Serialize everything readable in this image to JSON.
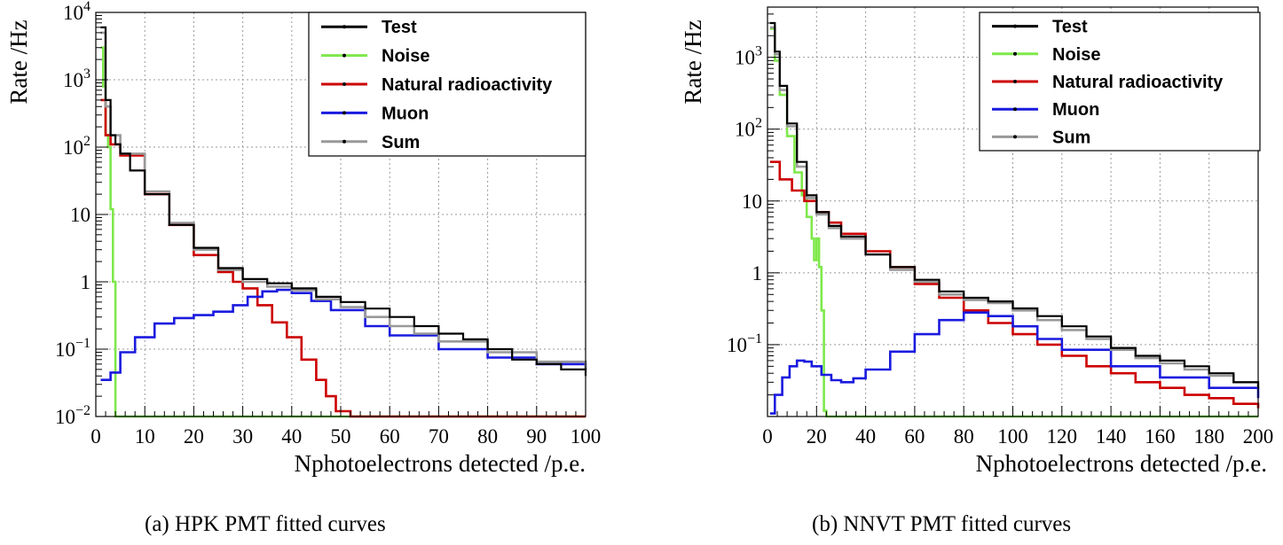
{
  "captions": {
    "a": "(a)  HPK PMT fitted curves",
    "b": "(b)  NNVT PMT fitted curves"
  },
  "colors": {
    "Test": "#000000",
    "Noise": "#7ee84a",
    "Natural radioactivity": "#cc0000",
    "Muon": "#1a1adf",
    "Sum": "#999999"
  },
  "chart_data": [
    {
      "type": "line",
      "title": "",
      "xlabel": "Nphotoelectrons detected /p.e.",
      "ylabel": "Rate /Hz",
      "xlim": [
        0,
        100
      ],
      "ylim": [
        0.01,
        10000
      ],
      "yscale": "log",
      "grid": true,
      "legend_position": "top-right",
      "x_ticks": [
        "0",
        "10",
        "20",
        "30",
        "40",
        "50",
        "60",
        "70",
        "80",
        "90",
        "100"
      ],
      "y_ticks": [
        {
          "value": 0.01,
          "base": "10",
          "exp": "−2"
        },
        {
          "value": 0.1,
          "base": "10",
          "exp": "−1"
        },
        {
          "value": 1,
          "label": "1"
        },
        {
          "value": 10,
          "label": "10"
        },
        {
          "value": 100,
          "base": "10",
          "exp": "2"
        },
        {
          "value": 1000,
          "base": "10",
          "exp": "3"
        },
        {
          "value": 10000,
          "base": "10",
          "exp": "4"
        }
      ],
      "series": [
        {
          "name": "Test",
          "x": [
            1,
            2,
            3,
            4,
            5,
            7,
            10,
            15,
            20,
            25,
            30,
            35,
            40,
            45,
            50,
            55,
            60,
            65,
            70,
            75,
            80,
            85,
            90,
            95,
            100
          ],
          "y": [
            6000,
            500,
            150,
            110,
            80,
            45,
            20,
            7,
            3.2,
            1.6,
            1.1,
            0.95,
            0.8,
            0.6,
            0.5,
            0.4,
            0.3,
            0.22,
            0.17,
            0.14,
            0.1,
            0.07,
            0.06,
            0.05,
            0.04
          ]
        },
        {
          "name": "Noise",
          "x": [
            1,
            1.5,
            2,
            2.5,
            3,
            3.5,
            4,
            4.5,
            5,
            10,
            50,
            100
          ],
          "y": [
            3000,
            800,
            150,
            100,
            12,
            1.0,
            0.01,
            0.01,
            0.01,
            0.01,
            0.01,
            0.01
          ]
        },
        {
          "name": "Natural radioactivity",
          "x": [
            1,
            2,
            3,
            5,
            10,
            15,
            20,
            25,
            28,
            30,
            33,
            36,
            39,
            42,
            45,
            47,
            49,
            52,
            60,
            80,
            100
          ],
          "y": [
            500,
            150,
            110,
            75,
            20,
            7,
            2.5,
            1.4,
            1.0,
            0.8,
            0.45,
            0.25,
            0.15,
            0.07,
            0.035,
            0.02,
            0.012,
            0.01,
            0.01,
            0.01,
            0.01
          ]
        },
        {
          "name": "Muon",
          "x": [
            1,
            3,
            5,
            8,
            12,
            16,
            20,
            24,
            28,
            31,
            34,
            37,
            40,
            44,
            48,
            55,
            60,
            70,
            80,
            90,
            100
          ],
          "y": [
            0.035,
            0.045,
            0.09,
            0.15,
            0.24,
            0.29,
            0.32,
            0.36,
            0.45,
            0.6,
            0.72,
            0.76,
            0.68,
            0.52,
            0.38,
            0.22,
            0.16,
            0.1,
            0.075,
            0.06,
            0.05
          ]
        },
        {
          "name": "Sum",
          "x": [
            1,
            2,
            3,
            5,
            10,
            15,
            20,
            25,
            30,
            35,
            40,
            45,
            50,
            55,
            60,
            65,
            70,
            80,
            90,
            100
          ],
          "y": [
            5000,
            400,
            150,
            80,
            22,
            7.5,
            3,
            1.5,
            1.0,
            0.85,
            0.75,
            0.55,
            0.42,
            0.3,
            0.22,
            0.17,
            0.13,
            0.09,
            0.065,
            0.05
          ]
        }
      ]
    },
    {
      "type": "line",
      "title": "",
      "xlabel": "Nphotoelectrons detected /p.e.",
      "ylabel": "Rate /Hz",
      "xlim": [
        0,
        200
      ],
      "ylim": [
        0.01,
        5000
      ],
      "yscale": "log",
      "grid": true,
      "legend_position": "top-right",
      "x_ticks": [
        "0",
        "20",
        "40",
        "60",
        "80",
        "100",
        "120",
        "140",
        "160",
        "180",
        "200"
      ],
      "y_ticks": [
        {
          "value": 0.1,
          "base": "10",
          "exp": "−1"
        },
        {
          "value": 1,
          "label": "1"
        },
        {
          "value": 10,
          "label": "10"
        },
        {
          "value": 100,
          "base": "10",
          "exp": "2"
        },
        {
          "value": 1000,
          "base": "10",
          "exp": "3"
        }
      ],
      "series": [
        {
          "name": "Test",
          "x": [
            1,
            3,
            5,
            8,
            12,
            16,
            20,
            25,
            30,
            40,
            50,
            60,
            70,
            80,
            90,
            100,
            110,
            120,
            130,
            140,
            150,
            160,
            170,
            180,
            190,
            200
          ],
          "y": [
            3000,
            1200,
            400,
            120,
            35,
            12,
            7,
            4.5,
            3.2,
            1.8,
            1.2,
            0.8,
            0.55,
            0.45,
            0.4,
            0.32,
            0.25,
            0.18,
            0.13,
            0.09,
            0.07,
            0.06,
            0.05,
            0.04,
            0.03,
            0.025
          ]
        },
        {
          "name": "Noise",
          "x": [
            1,
            3,
            5,
            8,
            11,
            14,
            16,
            18,
            19,
            20,
            21,
            22,
            23,
            24,
            30,
            60,
            100,
            150,
            200
          ],
          "y": [
            2500,
            900,
            300,
            80,
            25,
            12,
            6,
            3,
            1.5,
            3,
            1.2,
            0.3,
            0.012,
            0.01,
            0.01,
            0.01,
            0.01,
            0.01,
            0.01
          ]
        },
        {
          "name": "Natural radioactivity",
          "x": [
            1,
            5,
            10,
            15,
            20,
            25,
            30,
            40,
            50,
            60,
            70,
            80,
            90,
            100,
            110,
            120,
            130,
            140,
            150,
            160,
            170,
            180,
            190,
            200
          ],
          "y": [
            35,
            20,
            14,
            10,
            7,
            5,
            3.5,
            2,
            1.2,
            0.7,
            0.45,
            0.3,
            0.2,
            0.14,
            0.1,
            0.07,
            0.05,
            0.04,
            0.03,
            0.025,
            0.02,
            0.018,
            0.015,
            0.013
          ]
        },
        {
          "name": "Muon",
          "x": [
            1,
            3,
            6,
            9,
            12,
            15,
            18,
            22,
            26,
            30,
            35,
            40,
            50,
            60,
            70,
            80,
            86,
            90,
            100,
            110,
            120,
            140,
            160,
            180,
            200
          ],
          "y": [
            0.011,
            0.02,
            0.035,
            0.05,
            0.06,
            0.058,
            0.05,
            0.038,
            0.032,
            0.03,
            0.034,
            0.045,
            0.08,
            0.14,
            0.22,
            0.28,
            0.28,
            0.25,
            0.18,
            0.12,
            0.085,
            0.05,
            0.035,
            0.025,
            0.018
          ]
        },
        {
          "name": "Sum",
          "x": [
            1,
            3,
            5,
            8,
            12,
            16,
            20,
            25,
            30,
            40,
            50,
            60,
            70,
            80,
            90,
            100,
            110,
            120,
            130,
            140,
            150,
            160,
            170,
            180,
            190,
            200
          ],
          "y": [
            2600,
            1100,
            350,
            110,
            30,
            11,
            6.5,
            4.2,
            3,
            1.8,
            1.1,
            0.75,
            0.5,
            0.42,
            0.38,
            0.3,
            0.22,
            0.16,
            0.12,
            0.085,
            0.065,
            0.055,
            0.045,
            0.037,
            0.03,
            0.025
          ]
        }
      ]
    }
  ]
}
